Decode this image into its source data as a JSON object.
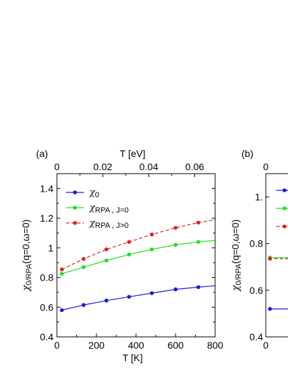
{
  "chart_data": [
    {
      "type": "line",
      "panel_label": "(a)",
      "xlabel": "T [K]",
      "x2label": "T [eV]",
      "ylabel_parts": [
        "χ",
        "0/RPA",
        "(q=0,ω=0)"
      ],
      "xlim": [
        0,
        800
      ],
      "x2lim": [
        0,
        0.0689
      ],
      "ylim": [
        0.4,
        1.5
      ],
      "xticks": [
        "0",
        "200",
        "400",
        "600",
        "800"
      ],
      "x2ticks": [
        "0",
        "0.02",
        "0.04",
        "0.06"
      ],
      "yticks": [
        "0.4",
        "0.6",
        "0.8",
        "1",
        "1.2",
        "1.4"
      ],
      "legend_position": "top-left",
      "series": [
        {
          "name_main": "χ",
          "name_sub": "0",
          "color": "#1a1adb",
          "dashed": false,
          "x": [
            25,
            135,
            250,
            365,
            480,
            600,
            715
          ],
          "y": [
            0.58,
            0.615,
            0.645,
            0.67,
            0.695,
            0.72,
            0.735
          ],
          "curve_x": [
            25,
            800
          ],
          "curve_y_end": [
            0.58,
            0.745
          ]
        },
        {
          "name_main": "χ",
          "name_sub": "RPA , J=0",
          "color": "#22dd22",
          "dashed": false,
          "x": [
            25,
            135,
            250,
            365,
            480,
            600,
            715
          ],
          "y": [
            0.825,
            0.87,
            0.915,
            0.955,
            0.99,
            1.02,
            1.04
          ],
          "curve_x": [
            25,
            800
          ],
          "curve_y_end": [
            0.825,
            1.05
          ]
        },
        {
          "name_main": "χ",
          "name_sub": "RPA , J>0",
          "color": "#e02020",
          "dashed": true,
          "x": [
            25,
            135,
            250,
            365,
            480,
            600,
            715
          ],
          "y": [
            0.855,
            0.925,
            0.99,
            1.04,
            1.09,
            1.135,
            1.17
          ],
          "curve_x": [
            25,
            800
          ],
          "curve_y_end": [
            0.855,
            1.19
          ]
        }
      ]
    },
    {
      "type": "line",
      "panel_label": "(b)",
      "ylabel_parts": [
        "χ",
        "0/RPA",
        "(q=0,ω=0)"
      ],
      "xticks": [
        "0"
      ],
      "x2ticks": [
        "0"
      ],
      "yticks": [
        "0.4",
        "0.6",
        "0.8",
        "1."
      ],
      "ylim": [
        0.4,
        1.1
      ],
      "series": [
        {
          "color": "#1a1adb",
          "dashed": false,
          "x": [
            0.02
          ],
          "y": [
            0.52
          ]
        },
        {
          "color": "#22dd22",
          "dashed": false,
          "x": [
            0.02
          ],
          "y": [
            0.74
          ]
        },
        {
          "color": "#e02020",
          "dashed": true,
          "x": [
            0.02
          ],
          "y": [
            0.735
          ]
        }
      ]
    }
  ]
}
